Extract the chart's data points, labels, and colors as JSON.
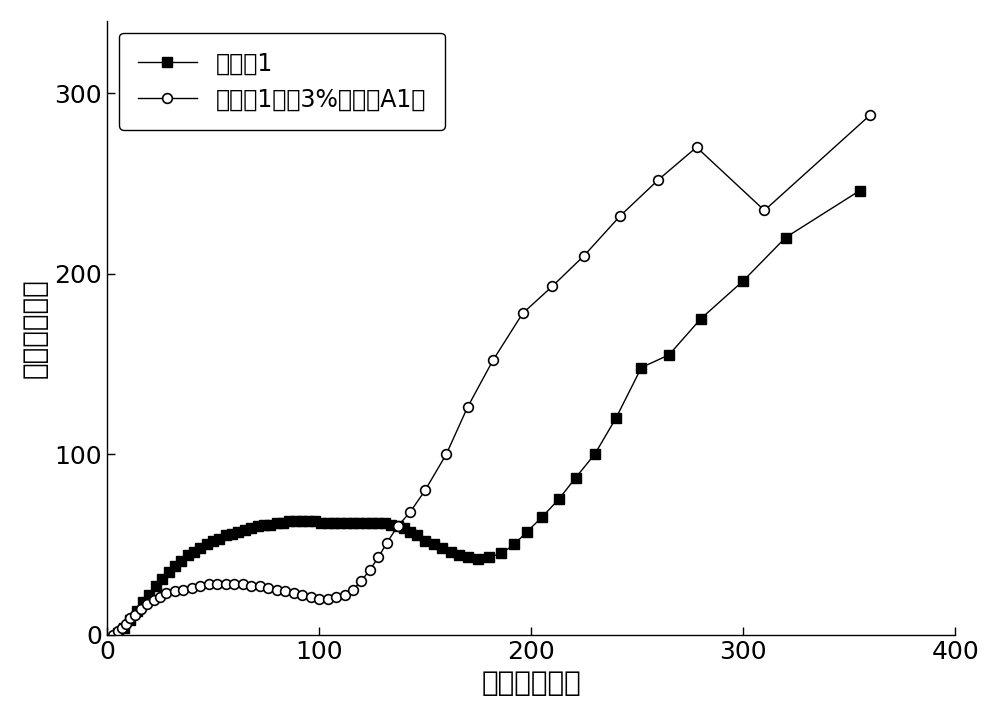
{
  "series1_label": "对比例1",
  "series2_label": "实施例1（含3%添加剂A1）",
  "xlabel": "实轴（欧姆）",
  "ylabel": "虚轴（欧姆）",
  "xlim": [
    0,
    400
  ],
  "ylim": [
    0,
    340
  ],
  "xticks": [
    0,
    100,
    200,
    300,
    400
  ],
  "yticks": [
    0,
    100,
    200,
    300
  ],
  "line_color": "#000000",
  "background_color": "#ffffff",
  "series1_x": [
    5,
    8,
    11,
    14,
    17,
    20,
    23,
    26,
    29,
    32,
    35,
    38,
    41,
    44,
    47,
    50,
    53,
    56,
    59,
    62,
    65,
    68,
    71,
    74,
    77,
    80,
    83,
    86,
    89,
    92,
    95,
    98,
    101,
    104,
    107,
    110,
    113,
    116,
    119,
    122,
    125,
    128,
    131,
    134,
    137,
    140,
    143,
    146,
    150,
    154,
    158,
    162,
    166,
    170,
    175,
    180,
    186,
    192,
    198,
    205,
    213,
    221,
    230,
    240,
    252,
    265,
    280,
    300,
    320,
    355
  ],
  "series1_y": [
    1,
    4,
    8,
    13,
    18,
    22,
    27,
    31,
    35,
    38,
    41,
    44,
    46,
    48,
    50,
    52,
    53,
    55,
    56,
    57,
    58,
    59,
    60,
    61,
    61,
    62,
    62,
    63,
    63,
    63,
    63,
    63,
    62,
    62,
    62,
    62,
    62,
    62,
    62,
    62,
    62,
    62,
    62,
    61,
    60,
    59,
    57,
    55,
    52,
    50,
    48,
    46,
    44,
    43,
    42,
    43,
    45,
    50,
    57,
    65,
    75,
    87,
    100,
    120,
    148,
    155,
    175,
    196,
    220,
    246
  ],
  "series2_x": [
    3,
    5,
    7,
    9,
    11,
    13,
    16,
    19,
    22,
    25,
    28,
    32,
    36,
    40,
    44,
    48,
    52,
    56,
    60,
    64,
    68,
    72,
    76,
    80,
    84,
    88,
    92,
    96,
    100,
    104,
    108,
    112,
    116,
    120,
    124,
    128,
    132,
    137,
    143,
    150,
    160,
    170,
    182,
    196,
    210,
    225,
    242,
    260,
    278,
    310,
    360
  ],
  "series2_y": [
    0,
    2,
    4,
    6,
    9,
    11,
    14,
    17,
    19,
    21,
    23,
    24,
    25,
    26,
    27,
    28,
    28,
    28,
    28,
    28,
    27,
    27,
    26,
    25,
    24,
    23,
    22,
    21,
    20,
    20,
    21,
    22,
    25,
    30,
    36,
    43,
    51,
    60,
    68,
    80,
    100,
    126,
    152,
    178,
    193,
    210,
    232,
    252,
    270,
    235,
    288
  ],
  "figsize": [
    10.0,
    7.18
  ],
  "dpi": 100,
  "label_fontsize": 20,
  "tick_fontsize": 18,
  "legend_fontsize": 17
}
